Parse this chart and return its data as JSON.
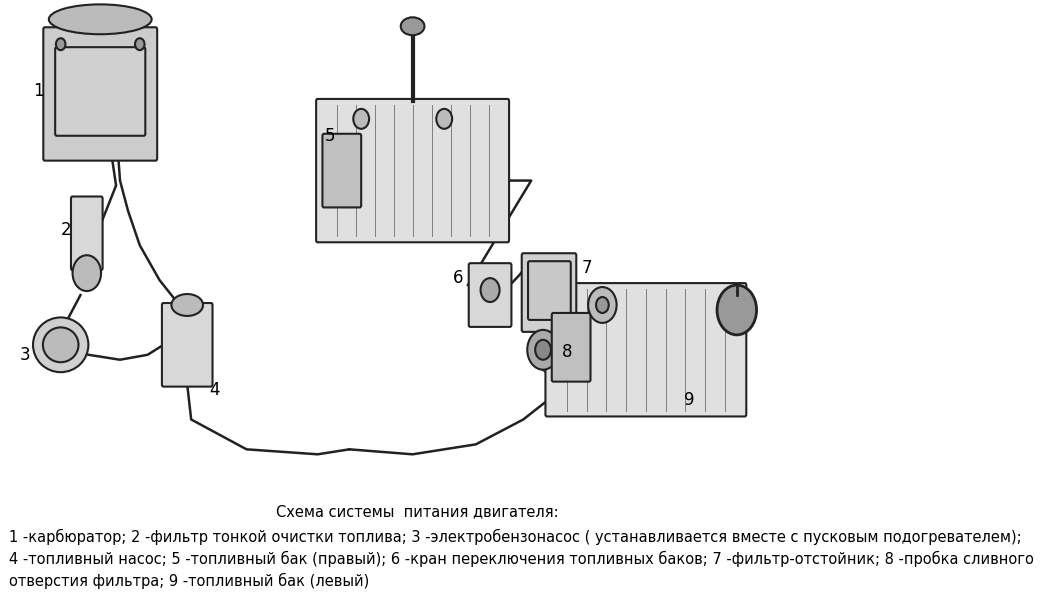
{
  "caption_lines": [
    "Схема системы  питания двигателя:",
    "1 -карбюратор; 2 -фильтр тонкой очистки топлива; 3 -электробензонасос ( устанавливается вместе с пусковым подогревателем);",
    "4 -топливный насос; 5 -топливный бак (правый); 6 -кран переключения топливных баков; 7 -фильтр-отстойник; 8 -пробка сливного",
    "отверстия фильтра; 9 -топливный бак (левый)"
  ],
  "bg_color": "#ffffff",
  "text_color": "#000000",
  "caption_fontsize": 10.5,
  "fig_width": 10.52,
  "fig_height": 6.07
}
